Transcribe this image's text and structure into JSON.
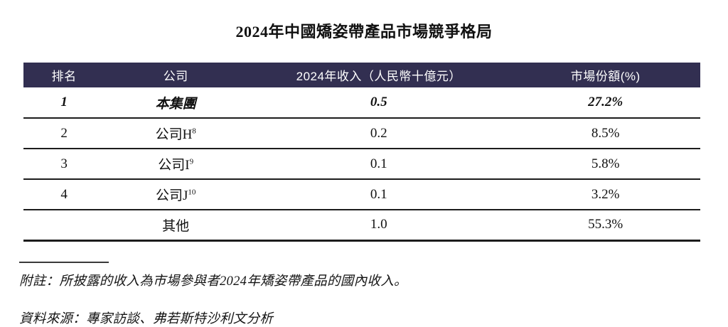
{
  "title": "2024年中國矯姿帶產品市場競爭格局",
  "table": {
    "header": {
      "rank": "排名",
      "company": "公司",
      "revenue": "2024年收入（人民幣十億元）",
      "share": "市場份額(%)"
    },
    "rows": [
      {
        "rank": "1",
        "company": "本集團",
        "company_sup": "",
        "revenue": "0.5",
        "share": "27.2%",
        "emphasis": true
      },
      {
        "rank": "2",
        "company": "公司H",
        "company_sup": "8",
        "revenue": "0.2",
        "share": "8.5%",
        "emphasis": false
      },
      {
        "rank": "3",
        "company": "公司I",
        "company_sup": "9",
        "revenue": "0.1",
        "share": "5.8%",
        "emphasis": false
      },
      {
        "rank": "4",
        "company": "公司J",
        "company_sup": "10",
        "revenue": "0.1",
        "share": "3.2%",
        "emphasis": false
      },
      {
        "rank": "",
        "company": "其他",
        "company_sup": "",
        "revenue": "1.0",
        "share": "55.3%",
        "emphasis": false
      }
    ]
  },
  "footnotes": {
    "note": "附註：所披露的收入為市場參與者2024年矯姿帶產品的國內收入。",
    "source": "資料來源：專家訪談、弗若斯特沙利文分析"
  },
  "colors": {
    "header_bg": "#322F51",
    "header_text": "#FFFFFF",
    "rule": "#1C1C1C"
  }
}
